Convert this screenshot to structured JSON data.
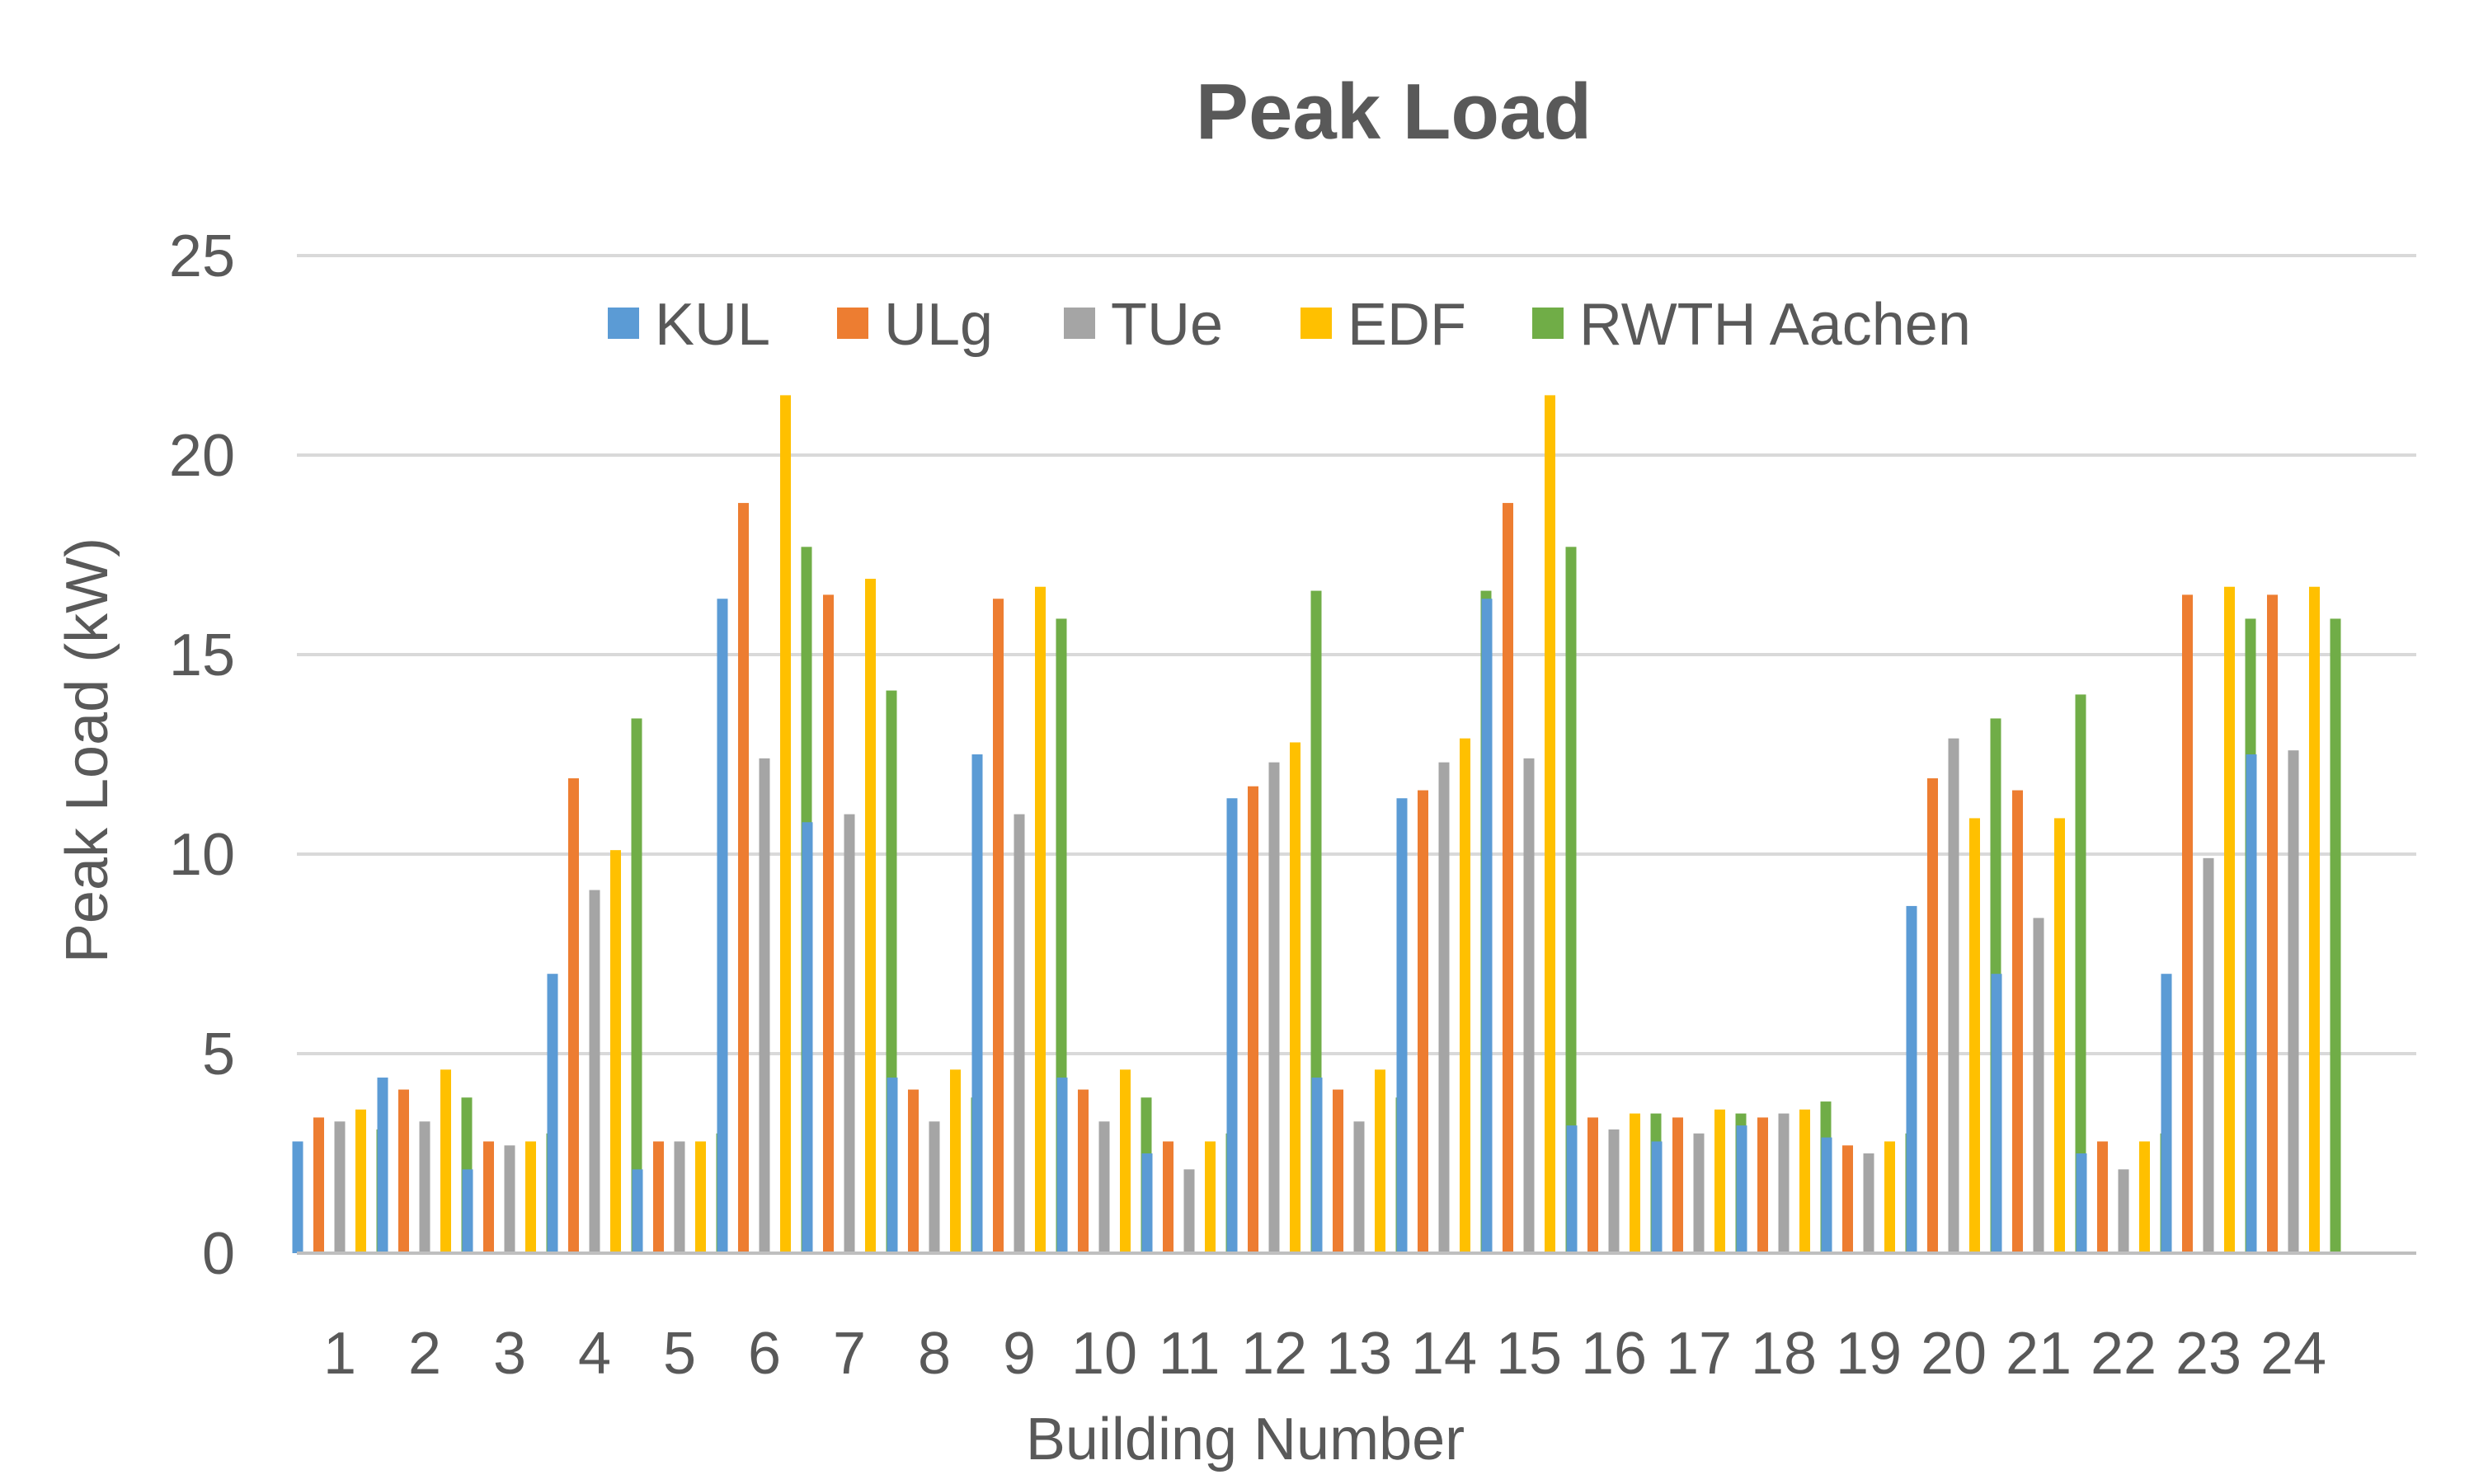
{
  "chart_data": {
    "type": "bar",
    "title": "Peak Load",
    "xlabel": "Building Number",
    "ylabel": "Peak Load (kW)",
    "ylim": [
      0,
      25
    ],
    "yticks": [
      "0",
      "5",
      "10",
      "15",
      "20",
      "25"
    ],
    "grid": true,
    "legend_position": "top",
    "categories": [
      "1",
      "2",
      "3",
      "4",
      "5",
      "6",
      "7",
      "8",
      "9",
      "10",
      "11",
      "12",
      "13",
      "14",
      "15",
      "16",
      "17",
      "18",
      "19",
      "20",
      "21",
      "22",
      "23",
      "24"
    ],
    "series": [
      {
        "name": "KUL",
        "color": "#5b9bd5",
        "values": [
          2.8,
          4.4,
          2.1,
          7.0,
          2.1,
          16.4,
          10.8,
          4.4,
          12.5,
          4.4,
          2.5,
          11.4,
          4.4,
          11.4,
          16.4,
          3.2,
          2.8,
          3.2,
          2.9,
          8.7,
          7.0,
          2.5,
          7.0,
          12.5
        ]
      },
      {
        "name": "ULg",
        "color": "#ed7d31",
        "values": [
          3.4,
          4.1,
          2.8,
          11.9,
          2.8,
          18.8,
          16.5,
          4.1,
          16.4,
          4.1,
          2.8,
          11.7,
          4.1,
          11.6,
          18.8,
          3.4,
          3.4,
          3.4,
          2.7,
          11.9,
          11.6,
          2.8,
          16.5,
          16.5
        ]
      },
      {
        "name": "TUe",
        "color": "#a5a5a5",
        "values": [
          3.3,
          3.3,
          2.7,
          9.1,
          2.8,
          12.4,
          11.0,
          3.3,
          11.0,
          3.3,
          2.1,
          12.3,
          3.3,
          12.3,
          12.4,
          3.1,
          3.0,
          3.5,
          2.5,
          12.9,
          8.4,
          2.1,
          9.9,
          12.6
        ]
      },
      {
        "name": "EDF",
        "color": "#ffc000",
        "values": [
          3.6,
          4.6,
          2.8,
          10.1,
          2.8,
          21.5,
          16.9,
          4.6,
          16.7,
          4.6,
          2.8,
          12.8,
          4.6,
          12.9,
          21.5,
          3.5,
          3.6,
          3.6,
          2.8,
          10.9,
          10.9,
          2.8,
          16.7,
          16.7
        ]
      },
      {
        "name": "RWTH Aachen",
        "color": "#70ad47",
        "values": [
          3.1,
          3.9,
          3.0,
          13.4,
          3.0,
          17.7,
          14.1,
          3.9,
          15.9,
          3.9,
          3.0,
          16.6,
          3.9,
          16.6,
          17.7,
          3.5,
          3.5,
          3.8,
          3.0,
          13.4,
          14.0,
          3.0,
          15.9,
          15.9
        ]
      }
    ]
  }
}
